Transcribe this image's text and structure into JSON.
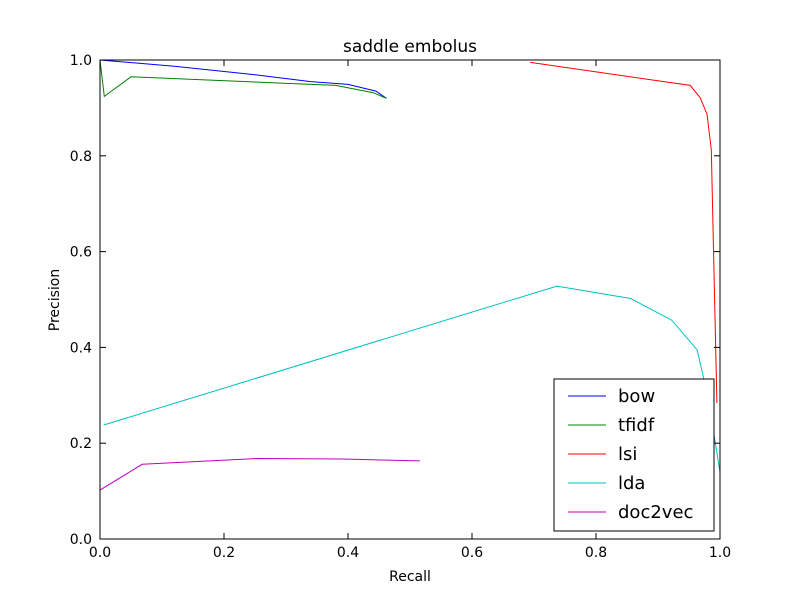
{
  "chart_data": {
    "type": "line",
    "title": "saddle embolus",
    "xlabel": "Recall",
    "ylabel": "Precision",
    "xlim": [
      0.0,
      1.0
    ],
    "ylim": [
      0.0,
      1.0
    ],
    "xticks": [
      "0.0",
      "0.2",
      "0.4",
      "0.6",
      "0.8",
      "1.0"
    ],
    "yticks": [
      "0.0",
      "0.2",
      "0.4",
      "0.6",
      "0.8",
      "1.0"
    ],
    "grid": false,
    "legend_position": "lower-right",
    "series": [
      {
        "name": "bow",
        "color": "#0000ff",
        "points": [
          [
            0.0,
            1.0
          ],
          [
            0.12,
            0.987
          ],
          [
            0.25,
            0.969
          ],
          [
            0.34,
            0.955
          ],
          [
            0.4,
            0.949
          ],
          [
            0.445,
            0.935
          ],
          [
            0.462,
            0.92
          ]
        ]
      },
      {
        "name": "tfidf",
        "color": "#008000",
        "points": [
          [
            0.0,
            1.0
          ],
          [
            0.007,
            0.924
          ],
          [
            0.05,
            0.965
          ],
          [
            0.38,
            0.947
          ],
          [
            0.44,
            0.932
          ],
          [
            0.462,
            0.92
          ]
        ]
      },
      {
        "name": "lsi",
        "color": "#ff0000",
        "points": [
          [
            0.694,
            0.995
          ],
          [
            0.952,
            0.947
          ],
          [
            0.968,
            0.921
          ],
          [
            0.979,
            0.887
          ],
          [
            0.986,
            0.813
          ],
          [
            0.995,
            0.284
          ]
        ]
      },
      {
        "name": "lda",
        "color": "#00bfbf",
        "points": [
          [
            0.006,
            0.238
          ],
          [
            0.737,
            0.528
          ],
          [
            0.856,
            0.502
          ],
          [
            0.922,
            0.457
          ],
          [
            0.963,
            0.395
          ],
          [
            0.98,
            0.3
          ],
          [
            1.0,
            0.14
          ]
        ]
      },
      {
        "name": "doc2vec",
        "color": "#bf00bf",
        "points": [
          [
            0.0,
            0.102
          ],
          [
            0.068,
            0.156
          ],
          [
            0.255,
            0.168
          ],
          [
            0.39,
            0.167
          ],
          [
            0.516,
            0.163
          ]
        ]
      }
    ]
  }
}
